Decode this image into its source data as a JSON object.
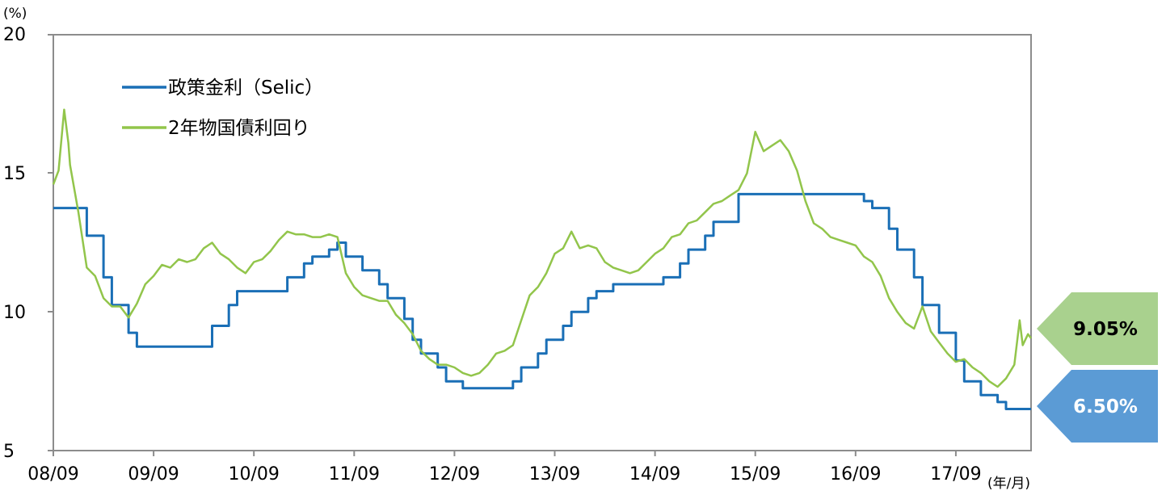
{
  "chart_data": {
    "type": "line",
    "ylabel": "(%)",
    "xlabel": "(年/月)",
    "ylim": [
      5,
      20
    ],
    "yticks": [
      "5",
      "10",
      "15",
      "20"
    ],
    "xticks": [
      "08/09",
      "09/09",
      "10/09",
      "11/09",
      "12/09",
      "13/09",
      "14/09",
      "15/09",
      "16/09",
      "17/09"
    ],
    "x_range": [
      "2008-09",
      "2018-06"
    ],
    "grid": false,
    "legend_position": "top-left",
    "series": [
      {
        "name": "政策金利（Selic）",
        "color": "#1a6fb6",
        "step": true,
        "points": [
          [
            "2008-09",
            13.75
          ],
          [
            "2008-12",
            13.75
          ],
          [
            "2009-01",
            12.75
          ],
          [
            "2009-03",
            11.25
          ],
          [
            "2009-04",
            10.25
          ],
          [
            "2009-06",
            9.25
          ],
          [
            "2009-07",
            8.75
          ],
          [
            "2010-04",
            9.5
          ],
          [
            "2010-06",
            10.25
          ],
          [
            "2010-07",
            10.75
          ],
          [
            "2011-01",
            11.25
          ],
          [
            "2011-03",
            11.75
          ],
          [
            "2011-04",
            12.0
          ],
          [
            "2011-06",
            12.25
          ],
          [
            "2011-07",
            12.5
          ],
          [
            "2011-08",
            12.0
          ],
          [
            "2011-10",
            11.5
          ],
          [
            "2011-12",
            11.0
          ],
          [
            "2012-01",
            10.5
          ],
          [
            "2012-03",
            9.75
          ],
          [
            "2012-04",
            9.0
          ],
          [
            "2012-05",
            8.5
          ],
          [
            "2012-07",
            8.0
          ],
          [
            "2012-08",
            7.5
          ],
          [
            "2012-10",
            7.25
          ],
          [
            "2013-04",
            7.5
          ],
          [
            "2013-05",
            8.0
          ],
          [
            "2013-07",
            8.5
          ],
          [
            "2013-08",
            9.0
          ],
          [
            "2013-10",
            9.5
          ],
          [
            "2013-11",
            10.0
          ],
          [
            "2014-01",
            10.5
          ],
          [
            "2014-02",
            10.75
          ],
          [
            "2014-04",
            11.0
          ],
          [
            "2014-10",
            11.25
          ],
          [
            "2014-12",
            11.75
          ],
          [
            "2015-01",
            12.25
          ],
          [
            "2015-03",
            12.75
          ],
          [
            "2015-04",
            13.25
          ],
          [
            "2015-07",
            14.25
          ],
          [
            "2016-10",
            14.0
          ],
          [
            "2016-11",
            13.75
          ],
          [
            "2017-01",
            13.0
          ],
          [
            "2017-02",
            12.25
          ],
          [
            "2017-04",
            11.25
          ],
          [
            "2017-05",
            10.25
          ],
          [
            "2017-07",
            9.25
          ],
          [
            "2017-09",
            8.25
          ],
          [
            "2017-10",
            7.5
          ],
          [
            "2017-12",
            7.0
          ],
          [
            "2018-02",
            6.75
          ],
          [
            "2018-03",
            6.5
          ],
          [
            "2018-06",
            6.5
          ]
        ]
      },
      {
        "name": "2年物国債利回り",
        "color": "#92c54b",
        "step": false,
        "points": [
          [
            "2008-09",
            14.6
          ],
          [
            "2008-09-20",
            15.1
          ],
          [
            "2008-10-10",
            17.3
          ],
          [
            "2008-10-25",
            16.1
          ],
          [
            "2008-11",
            15.3
          ],
          [
            "2008-12",
            13.6
          ],
          [
            "2009-01",
            11.6
          ],
          [
            "2009-02",
            11.3
          ],
          [
            "2009-03",
            10.5
          ],
          [
            "2009-04",
            10.2
          ],
          [
            "2009-05",
            10.2
          ],
          [
            "2009-06",
            9.8
          ],
          [
            "2009-07",
            10.3
          ],
          [
            "2009-08",
            11.0
          ],
          [
            "2009-09",
            11.3
          ],
          [
            "2009-10",
            11.7
          ],
          [
            "2009-11",
            11.6
          ],
          [
            "2009-12",
            11.9
          ],
          [
            "2010-01",
            11.8
          ],
          [
            "2010-02",
            11.9
          ],
          [
            "2010-03",
            12.3
          ],
          [
            "2010-04",
            12.5
          ],
          [
            "2010-05",
            12.1
          ],
          [
            "2010-06",
            11.9
          ],
          [
            "2010-07",
            11.6
          ],
          [
            "2010-08",
            11.4
          ],
          [
            "2010-09",
            11.8
          ],
          [
            "2010-10",
            11.9
          ],
          [
            "2010-11",
            12.2
          ],
          [
            "2010-12",
            12.6
          ],
          [
            "2011-01",
            12.9
          ],
          [
            "2011-02",
            12.8
          ],
          [
            "2011-03",
            12.8
          ],
          [
            "2011-04",
            12.7
          ],
          [
            "2011-05",
            12.7
          ],
          [
            "2011-06",
            12.8
          ],
          [
            "2011-07",
            12.7
          ],
          [
            "2011-08",
            11.4
          ],
          [
            "2011-09",
            10.9
          ],
          [
            "2011-10",
            10.6
          ],
          [
            "2011-11",
            10.5
          ],
          [
            "2011-12",
            10.4
          ],
          [
            "2012-01",
            10.4
          ],
          [
            "2012-02",
            9.9
          ],
          [
            "2012-03",
            9.6
          ],
          [
            "2012-04",
            9.2
          ],
          [
            "2012-05",
            8.6
          ],
          [
            "2012-06",
            8.3
          ],
          [
            "2012-07",
            8.1
          ],
          [
            "2012-08",
            8.1
          ],
          [
            "2012-09",
            8.0
          ],
          [
            "2012-10",
            7.8
          ],
          [
            "2012-11",
            7.7
          ],
          [
            "2012-12",
            7.8
          ],
          [
            "2013-01",
            8.1
          ],
          [
            "2013-02",
            8.5
          ],
          [
            "2013-03",
            8.6
          ],
          [
            "2013-04",
            8.8
          ],
          [
            "2013-05",
            9.7
          ],
          [
            "2013-06",
            10.6
          ],
          [
            "2013-07",
            10.9
          ],
          [
            "2013-08",
            11.4
          ],
          [
            "2013-09",
            12.1
          ],
          [
            "2013-10",
            12.3
          ],
          [
            "2013-11",
            12.9
          ],
          [
            "2013-12",
            12.3
          ],
          [
            "2014-01",
            12.4
          ],
          [
            "2014-02",
            12.3
          ],
          [
            "2014-03",
            11.8
          ],
          [
            "2014-04",
            11.6
          ],
          [
            "2014-05",
            11.5
          ],
          [
            "2014-06",
            11.4
          ],
          [
            "2014-07",
            11.5
          ],
          [
            "2014-08",
            11.8
          ],
          [
            "2014-09",
            12.1
          ],
          [
            "2014-10",
            12.3
          ],
          [
            "2014-11",
            12.7
          ],
          [
            "2014-12",
            12.8
          ],
          [
            "2015-01",
            13.2
          ],
          [
            "2015-02",
            13.3
          ],
          [
            "2015-03",
            13.6
          ],
          [
            "2015-04",
            13.9
          ],
          [
            "2015-05",
            14.0
          ],
          [
            "2015-06",
            14.2
          ],
          [
            "2015-07",
            14.4
          ],
          [
            "2015-08",
            15.0
          ],
          [
            "2015-09",
            16.5
          ],
          [
            "2015-10",
            15.8
          ],
          [
            "2015-11",
            16.0
          ],
          [
            "2015-12",
            16.2
          ],
          [
            "2016-01",
            15.8
          ],
          [
            "2016-02",
            15.1
          ],
          [
            "2016-03",
            14.0
          ],
          [
            "2016-04",
            13.2
          ],
          [
            "2016-05",
            13.0
          ],
          [
            "2016-06",
            12.7
          ],
          [
            "2016-07",
            12.6
          ],
          [
            "2016-08",
            12.5
          ],
          [
            "2016-09",
            12.4
          ],
          [
            "2016-10",
            12.0
          ],
          [
            "2016-11",
            11.8
          ],
          [
            "2016-12",
            11.3
          ],
          [
            "2017-01",
            10.5
          ],
          [
            "2017-02",
            10.0
          ],
          [
            "2017-03",
            9.6
          ],
          [
            "2017-04",
            9.4
          ],
          [
            "2017-05",
            10.2
          ],
          [
            "2017-06",
            9.3
          ],
          [
            "2017-07",
            8.9
          ],
          [
            "2017-08",
            8.5
          ],
          [
            "2017-09",
            8.2
          ],
          [
            "2017-10",
            8.3
          ],
          [
            "2017-11",
            8.0
          ],
          [
            "2017-12",
            7.8
          ],
          [
            "2018-01",
            7.5
          ],
          [
            "2018-02",
            7.3
          ],
          [
            "2018-03",
            7.6
          ],
          [
            "2018-04",
            8.1
          ],
          [
            "2018-04-20",
            9.7
          ],
          [
            "2018-05",
            8.8
          ],
          [
            "2018-05-20",
            9.2
          ],
          [
            "2018-06",
            9.05
          ]
        ]
      }
    ],
    "callouts": [
      {
        "label": "9.05%",
        "series": "2年物国債利回り",
        "color": "#a9d18e",
        "text_color": "#000000"
      },
      {
        "label": "6.50%",
        "series": "政策金利（Selic）",
        "color": "#5b9bd5",
        "text_color": "#ffffff"
      }
    ]
  }
}
